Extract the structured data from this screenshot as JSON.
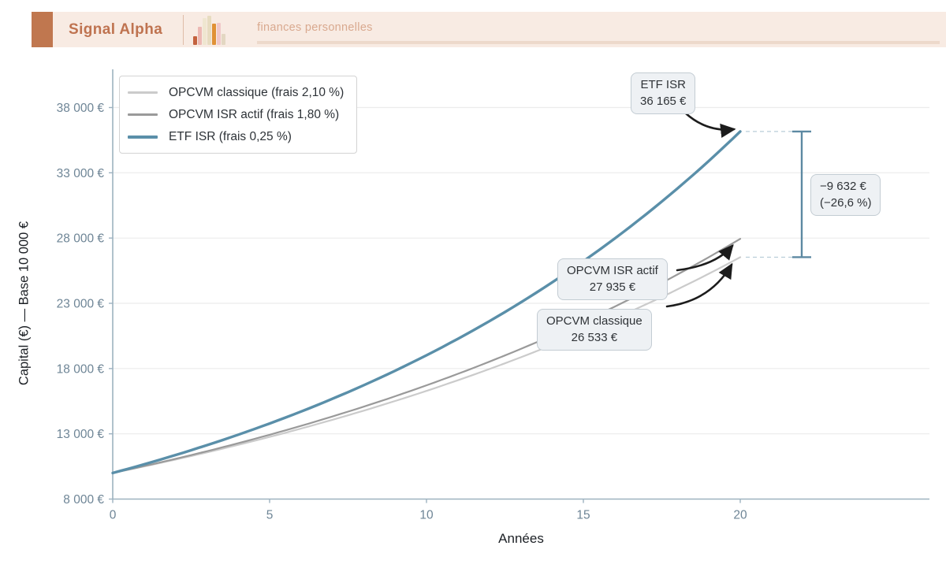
{
  "header": {
    "brand": "Signal Alpha",
    "subtitle": "finances personnelles"
  },
  "colors": {
    "brand": "#c0774f",
    "header_bg": "#f8ebe3",
    "etf_line": "#5a8fa9",
    "opcvm_isr_line": "#9a9a9a",
    "opcvm_classique_line": "#cbcbcb",
    "tick_label": "#6e8596",
    "bracket": "#5d89a2",
    "annotation_bg": "#eef1f4",
    "annotation_border": "#c3ccd3",
    "arrow": "#1c1c1c"
  },
  "chart_data": {
    "type": "line",
    "title": "",
    "xlabel": "Années",
    "ylabel": "Capital (€) — Base 10 000 €",
    "x_ticks": [
      0,
      5,
      10,
      15,
      20
    ],
    "y_ticks": [
      8000,
      13000,
      18000,
      23000,
      28000,
      33000,
      38000
    ],
    "y_tick_labels": [
      "8 000 €",
      "13 000 €",
      "18 000 €",
      "23 000 €",
      "28 000 €",
      "33 000 €",
      "38 000 €"
    ],
    "x_range": [
      0,
      26.5
    ],
    "y_range": [
      8000,
      40900
    ],
    "grid": true,
    "legend_position": "top-left",
    "base_capital": 10000,
    "horizon_years": 20,
    "series": [
      {
        "id": "opcvm-classique",
        "name": "OPCVM classique",
        "label": "OPCVM classique (frais 2,10 %)",
        "fees": "2,10 %",
        "color": "#cbcbcb",
        "width": 2.2,
        "start": 10000,
        "end": 26533
      },
      {
        "id": "opcvm-isr-actif",
        "name": "OPCVM ISR actif",
        "label": "OPCVM ISR actif (frais 1,80 %)",
        "fees": "1,80 %",
        "color": "#9a9a9a",
        "width": 2.2,
        "start": 10000,
        "end": 27935
      },
      {
        "id": "etf-isr",
        "name": "ETF ISR",
        "label": "ETF ISR (frais 0,25 %)",
        "fees": "0,25 %",
        "color": "#5a8fa9",
        "width": 3.4,
        "start": 10000,
        "end": 36165
      }
    ]
  },
  "annotations": {
    "etf": {
      "title": "ETF ISR",
      "value": "36 165 €"
    },
    "opcvm_isr": {
      "title": "OPCVM ISR actif",
      "value": "27 935 €"
    },
    "opcvm_classique": {
      "title": "OPCVM classique",
      "value": "26 533 €"
    },
    "difference": {
      "amount": "−9 632 €",
      "percent": "(−26,6 %)"
    }
  }
}
